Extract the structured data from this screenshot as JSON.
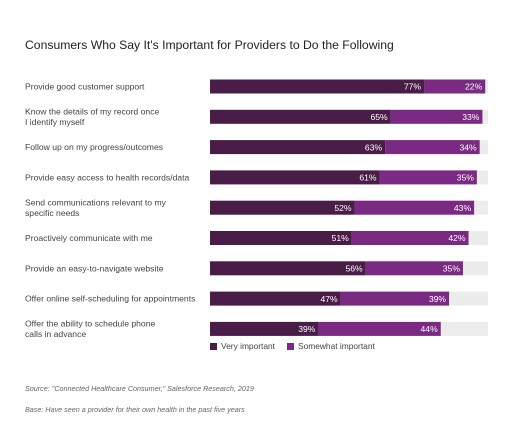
{
  "chart_data": {
    "type": "bar",
    "orientation": "horizontal",
    "stacked": true,
    "title": "Consumers Who Say It's Important for Providers to Do the Following",
    "categories": [
      [
        "Provide good customer support"
      ],
      [
        "Know the details of my record once",
        "I identify myself"
      ],
      [
        "Follow up on my progress/outcomes"
      ],
      [
        "Provide easy access to health records/data"
      ],
      [
        "Send communications relevant to my",
        "specific needs"
      ],
      [
        "Proactively communicate with me"
      ],
      [
        "Provide an easy-to-navigate website"
      ],
      [
        "Offer online self-scheduling for appointments"
      ],
      [
        "Offer the ability to schedule phone",
        "calls in advance"
      ]
    ],
    "series": [
      {
        "name": "Very important",
        "color": "#4a1c48",
        "values": [
          77,
          65,
          63,
          61,
          52,
          51,
          56,
          47,
          39
        ]
      },
      {
        "name": "Somewhat important",
        "color": "#7b2a83",
        "values": [
          22,
          33,
          34,
          35,
          43,
          42,
          35,
          39,
          44
        ]
      }
    ],
    "value_suffix": "%",
    "xlim": [
      0,
      100
    ],
    "track_color": "#ececec",
    "legend_position": "bottom"
  },
  "footnotes": {
    "source": "Source: \"Connected Healthcare Consumer,\" Salesforce Research, 2019",
    "base": "Base: Have seen a provider for their own health in the past five years"
  }
}
